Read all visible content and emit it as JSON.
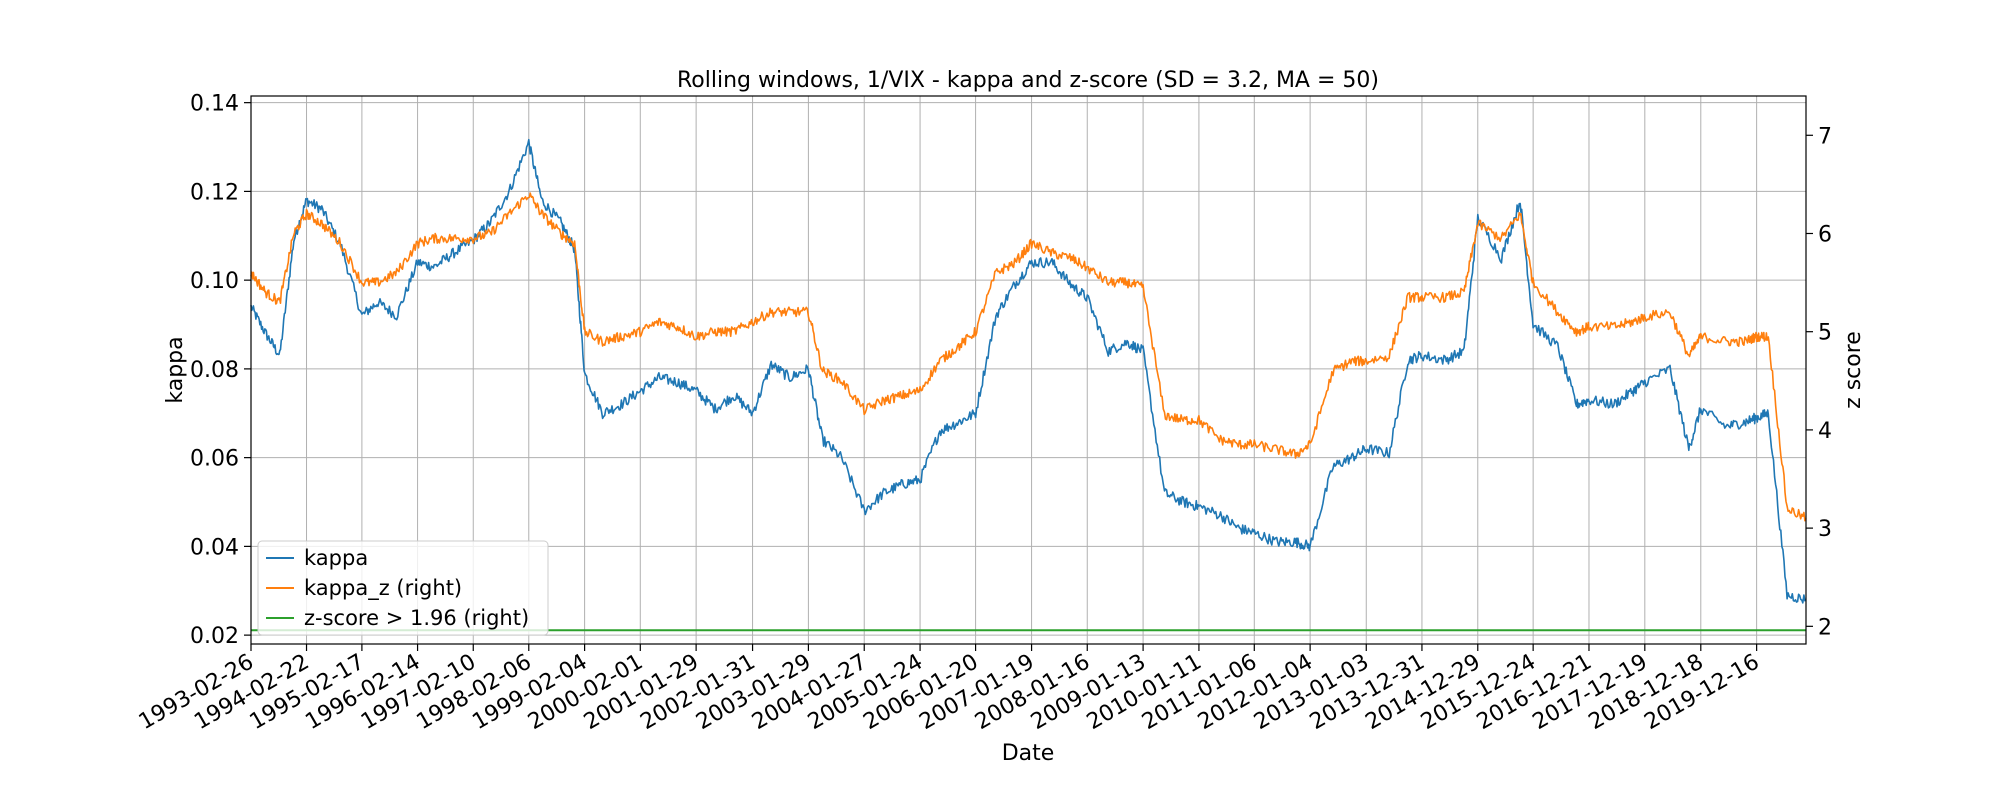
{
  "chart_data": {
    "type": "line",
    "title": "Rolling windows, 1/VIX - kappa and z-score (SD = 3.2, MA = 50)",
    "xlabel": "Date",
    "ylabel": "kappa",
    "y2label": "z score",
    "x_range": [
      "1993-02-26",
      "2020-11-01"
    ],
    "ylim": [
      0.018,
      0.1415
    ],
    "y2lim": [
      1.82,
      7.4
    ],
    "y_ticks": [
      "0.02",
      "0.04",
      "0.06",
      "0.08",
      "0.10",
      "0.12",
      "0.14"
    ],
    "y2_ticks": [
      "2",
      "3",
      "4",
      "5",
      "6",
      "7"
    ],
    "x_ticks": [
      "1993-02-26",
      "1994-02-22",
      "1995-02-17",
      "1996-02-14",
      "1997-02-10",
      "1998-02-06",
      "1999-02-04",
      "2000-02-01",
      "2001-01-29",
      "2002-01-31",
      "2003-01-29",
      "2004-01-27",
      "2005-01-24",
      "2006-01-20",
      "2007-01-19",
      "2008-01-16",
      "2009-01-13",
      "2010-01-11",
      "2011-01-06",
      "2012-01-04",
      "2013-01-03",
      "2013-12-31",
      "2014-12-29",
      "2015-12-24",
      "2016-12-21",
      "2017-12-19",
      "2018-12-18",
      "2019-12-16"
    ],
    "grid": true,
    "legend_position": "lower-left",
    "series": [
      {
        "name": "kappa",
        "axis": "left",
        "color": "#1f77b4",
        "x": [
          "1993-02-26",
          "1993-06-01",
          "1993-09-01",
          "1993-12-01",
          "1994-02-22",
          "1994-06-01",
          "1994-10-01",
          "1995-02-17",
          "1995-06-01",
          "1995-10-01",
          "1996-02-14",
          "1996-06-01",
          "1996-10-01",
          "1997-02-10",
          "1997-06-01",
          "1997-10-01",
          "1998-02-06",
          "1998-05-01",
          "1998-09-01",
          "1998-12-01",
          "1999-02-04",
          "1999-06-01",
          "1999-10-01",
          "2000-02-01",
          "2000-06-01",
          "2000-10-01",
          "2001-01-29",
          "2001-06-01",
          "2001-10-01",
          "2002-01-31",
          "2002-06-01",
          "2002-10-01",
          "2003-01-29",
          "2003-05-01",
          "2003-09-01",
          "2004-01-27",
          "2004-06-01",
          "2004-10-01",
          "2005-01-24",
          "2005-06-01",
          "2005-10-01",
          "2006-01-20",
          "2006-06-01",
          "2006-10-01",
          "2007-01-19",
          "2007-06-01",
          "2007-10-01",
          "2008-01-16",
          "2008-06-01",
          "2008-10-01",
          "2009-01-13",
          "2009-06-01",
          "2009-10-01",
          "2010-01-11",
          "2010-06-01",
          "2010-10-01",
          "2011-01-06",
          "2011-06-01",
          "2011-10-01",
          "2012-01-04",
          "2012-06-01",
          "2012-10-01",
          "2013-01-03",
          "2013-06-01",
          "2013-10-01",
          "2013-12-31",
          "2014-06-01",
          "2014-10-01",
          "2014-12-29",
          "2015-06-01",
          "2015-10-01",
          "2015-12-24",
          "2016-06-01",
          "2016-10-01",
          "2016-12-21",
          "2017-06-01",
          "2017-10-01",
          "2017-12-19",
          "2018-06-01",
          "2018-10-01",
          "2018-12-18",
          "2019-06-01",
          "2019-10-01",
          "2019-12-16",
          "2020-03-01",
          "2020-07-01",
          "2020-11-01"
        ],
        "values": [
          0.094,
          0.088,
          0.083,
          0.109,
          0.118,
          0.116,
          0.108,
          0.092,
          0.095,
          0.092,
          0.104,
          0.103,
          0.106,
          0.109,
          0.113,
          0.12,
          0.131,
          0.118,
          0.113,
          0.107,
          0.079,
          0.07,
          0.072,
          0.075,
          0.078,
          0.077,
          0.075,
          0.071,
          0.074,
          0.07,
          0.081,
          0.078,
          0.08,
          0.064,
          0.06,
          0.048,
          0.052,
          0.054,
          0.055,
          0.066,
          0.068,
          0.07,
          0.092,
          0.099,
          0.104,
          0.104,
          0.099,
          0.096,
          0.084,
          0.086,
          0.084,
          0.052,
          0.05,
          0.049,
          0.047,
          0.044,
          0.043,
          0.041,
          0.041,
          0.04,
          0.058,
          0.06,
          0.062,
          0.061,
          0.082,
          0.083,
          0.082,
          0.084,
          0.114,
          0.105,
          0.118,
          0.09,
          0.085,
          0.072,
          0.073,
          0.072,
          0.075,
          0.077,
          0.08,
          0.062,
          0.071,
          0.067,
          0.068,
          0.069,
          0.07,
          0.029,
          0.028
        ]
      },
      {
        "name": "kappa_z (right)",
        "axis": "right",
        "color": "#ff7f0e",
        "x": [
          "1993-02-26",
          "1993-06-01",
          "1993-09-01",
          "1993-12-01",
          "1994-02-22",
          "1994-06-01",
          "1994-10-01",
          "1995-02-17",
          "1995-06-01",
          "1995-10-01",
          "1996-02-14",
          "1996-06-01",
          "1996-10-01",
          "1997-02-10",
          "1997-06-01",
          "1997-10-01",
          "1998-02-06",
          "1998-05-01",
          "1998-09-01",
          "1998-12-01",
          "1999-02-04",
          "1999-06-01",
          "1999-10-01",
          "2000-02-01",
          "2000-06-01",
          "2000-10-01",
          "2001-01-29",
          "2001-06-01",
          "2001-10-01",
          "2002-01-31",
          "2002-06-01",
          "2002-10-01",
          "2003-01-29",
          "2003-05-01",
          "2003-09-01",
          "2004-01-27",
          "2004-06-01",
          "2004-10-01",
          "2005-01-24",
          "2005-06-01",
          "2005-10-01",
          "2006-01-20",
          "2006-06-01",
          "2006-10-01",
          "2007-01-19",
          "2007-06-01",
          "2007-10-01",
          "2008-01-16",
          "2008-06-01",
          "2008-10-01",
          "2009-01-13",
          "2009-06-01",
          "2009-10-01",
          "2010-01-11",
          "2010-06-01",
          "2010-10-01",
          "2011-01-06",
          "2011-06-01",
          "2011-10-01",
          "2012-01-04",
          "2012-06-01",
          "2012-10-01",
          "2013-01-03",
          "2013-06-01",
          "2013-10-01",
          "2013-12-31",
          "2014-06-01",
          "2014-10-01",
          "2014-12-29",
          "2015-06-01",
          "2015-10-01",
          "2015-12-24",
          "2016-06-01",
          "2016-10-01",
          "2016-12-21",
          "2017-06-01",
          "2017-10-01",
          "2017-12-19",
          "2018-06-01",
          "2018-10-01",
          "2018-12-18",
          "2019-06-01",
          "2019-10-01",
          "2019-12-16",
          "2020-03-01",
          "2020-07-01",
          "2020-11-01"
        ],
        "values": [
          5.6,
          5.4,
          5.3,
          6.0,
          6.2,
          6.1,
          5.9,
          5.5,
          5.5,
          5.6,
          5.9,
          5.95,
          5.95,
          5.95,
          6.0,
          6.2,
          6.4,
          6.2,
          6.0,
          5.9,
          5.0,
          4.9,
          4.95,
          5.0,
          5.1,
          5.05,
          4.95,
          5.0,
          5.0,
          5.1,
          5.2,
          5.2,
          5.2,
          4.6,
          4.5,
          4.2,
          4.3,
          4.35,
          4.4,
          4.7,
          4.85,
          5.0,
          5.6,
          5.7,
          5.9,
          5.8,
          5.75,
          5.65,
          5.5,
          5.5,
          5.45,
          4.15,
          4.1,
          4.1,
          3.9,
          3.85,
          3.85,
          3.8,
          3.75,
          3.85,
          4.6,
          4.7,
          4.7,
          4.75,
          5.35,
          5.35,
          5.35,
          5.4,
          6.1,
          5.95,
          6.2,
          5.5,
          5.2,
          5.0,
          5.05,
          5.05,
          5.1,
          5.15,
          5.2,
          4.75,
          4.95,
          4.9,
          4.9,
          4.95,
          4.95,
          3.2,
          3.1
        ]
      },
      {
        "name": "z-score > 1.96 (right)",
        "axis": "right",
        "color": "#2ca02c",
        "x": [
          "1993-02-26",
          "2020-11-01"
        ],
        "values": [
          1.96,
          1.96
        ]
      }
    ]
  }
}
